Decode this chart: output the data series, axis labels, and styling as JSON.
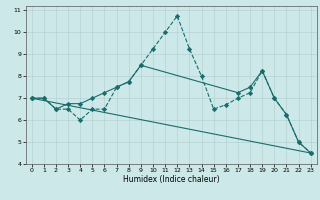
{
  "xlabel": "Humidex (Indice chaleur)",
  "xlim": [
    -0.5,
    23.5
  ],
  "ylim": [
    4,
    11.2
  ],
  "xticks": [
    0,
    1,
    2,
    3,
    4,
    5,
    6,
    7,
    8,
    9,
    10,
    11,
    12,
    13,
    14,
    15,
    16,
    17,
    18,
    19,
    20,
    21,
    22,
    23
  ],
  "yticks": [
    4,
    5,
    6,
    7,
    8,
    9,
    10,
    11
  ],
  "bg_color": "#cde8e8",
  "line_color": "#1a6b6b",
  "series": [
    {
      "x": [
        0,
        1,
        2,
        3,
        4,
        5,
        6,
        7,
        8,
        9,
        10,
        11,
        12,
        13,
        14,
        15,
        16,
        17,
        18,
        19,
        20,
        21,
        22,
        23
      ],
      "y": [
        7.0,
        7.0,
        6.5,
        6.5,
        6.0,
        6.5,
        6.5,
        7.5,
        7.75,
        8.5,
        9.25,
        10.0,
        10.75,
        9.25,
        8.0,
        6.5,
        6.7,
        7.0,
        7.25,
        8.25,
        7.0,
        6.25,
        5.0,
        4.5
      ],
      "dashed": true
    },
    {
      "x": [
        0,
        1,
        2,
        3,
        4,
        5,
        6,
        7,
        8,
        9,
        17,
        18,
        19,
        20,
        21,
        22,
        23
      ],
      "y": [
        7.0,
        7.0,
        6.5,
        6.75,
        6.75,
        7.0,
        7.25,
        7.5,
        7.75,
        8.5,
        7.25,
        7.5,
        8.25,
        7.0,
        6.25,
        5.0,
        4.5
      ],
      "dashed": false
    },
    {
      "x": [
        0,
        23
      ],
      "y": [
        7.0,
        4.5
      ],
      "dashed": false
    }
  ]
}
